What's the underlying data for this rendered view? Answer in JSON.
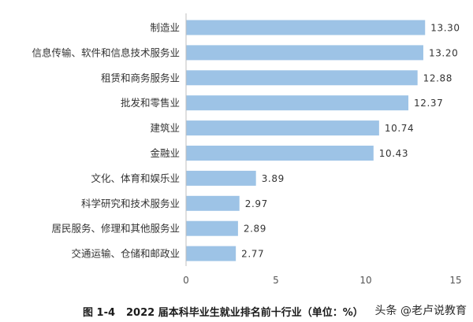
{
  "chart_data": {
    "type": "bar",
    "orientation": "horizontal",
    "categories": [
      "制造业",
      "信息传输、软件和信息技术服务业",
      "租赁和商务服务业",
      "批发和零售业",
      "建筑业",
      "金融业",
      "文化、体育和娱乐业",
      "科学研究和技术服务业",
      "居民服务、修理和其他服务业",
      "交通运输、仓储和邮政业"
    ],
    "values": [
      13.3,
      13.2,
      12.88,
      12.37,
      10.74,
      10.43,
      3.89,
      2.97,
      2.89,
      2.77
    ],
    "value_labels": [
      "13.30",
      "13.20",
      "12.88",
      "12.37",
      "10.74",
      "10.43",
      "3.89",
      "2.97",
      "2.89",
      "2.77"
    ],
    "xlim": [
      0,
      15
    ],
    "xticks": [
      "0",
      "5",
      "10",
      "15"
    ],
    "grid": false,
    "bar_color": "#9dc3e6"
  },
  "caption": {
    "figure_no": "图 1-4",
    "title": "2022 届本科毕业生就业排名前十行业（单位：%）"
  },
  "watermark": {
    "text": "头条 @老卢说教育"
  }
}
